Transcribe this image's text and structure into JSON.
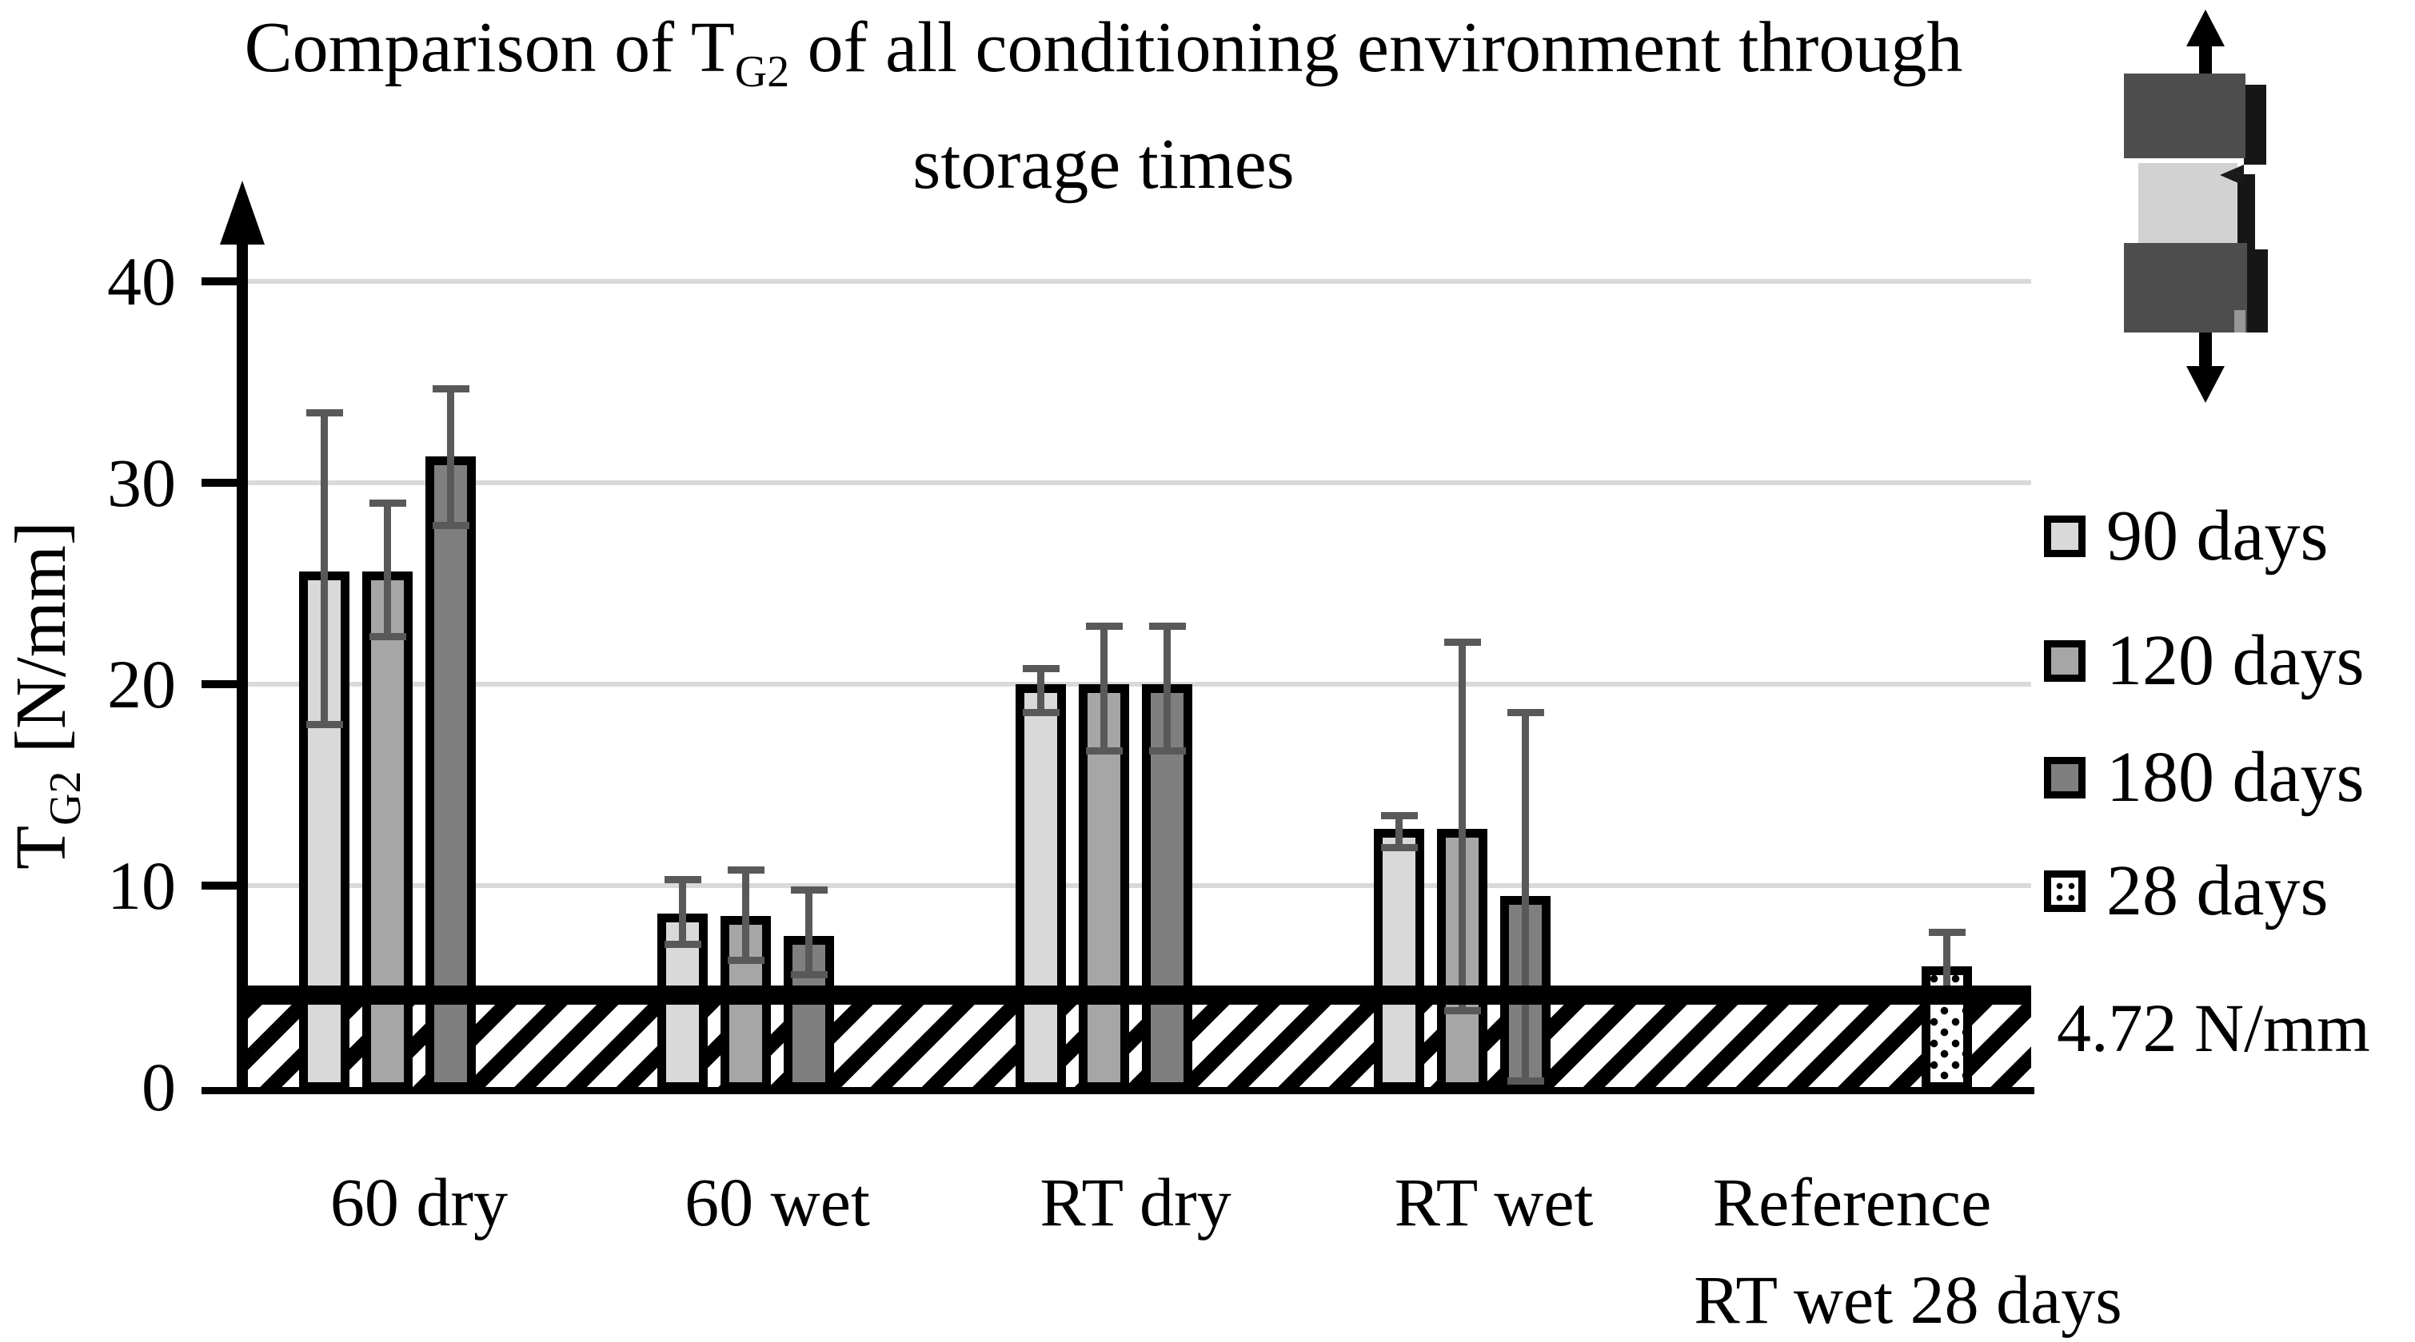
{
  "title": {
    "line1_prefix": "Comparison of T",
    "line1_sub": "G2",
    "line1_rest": " of all conditioning environment through",
    "line2": "storage times"
  },
  "y_axis": {
    "label_prefix": "T",
    "label_sub": "G2",
    "label_rest": " [N/mm]",
    "ticks": [
      0,
      10,
      20,
      30,
      40
    ]
  },
  "threshold": {
    "value": 4.72,
    "label": "4.72 N/mm"
  },
  "legend": {
    "items": [
      {
        "label": "90 days",
        "fill": "#d9d9d9",
        "pattern": "solid"
      },
      {
        "label": "120 days",
        "fill": "#a6a6a6",
        "pattern": "solid"
      },
      {
        "label": "180 days",
        "fill": "#7f7f7f",
        "pattern": "solid"
      },
      {
        "label": "28 days",
        "fill": "#ffffff",
        "pattern": "dotted"
      }
    ]
  },
  "colors": {
    "error_bar": "#595959",
    "gridline": "#d9d9d9",
    "axis": "#000000"
  },
  "chart_data": {
    "type": "bar",
    "title": "Comparison of TG2 of all conditioning environment through storage times",
    "ylabel": "TG2 [N/mm]",
    "xlabel": "",
    "ylim": [
      0,
      44
    ],
    "grid": true,
    "legend_position": "right",
    "threshold_line": 4.72,
    "categories": [
      {
        "line1": "60 dry",
        "line2": ""
      },
      {
        "line1": "60 wet",
        "line2": ""
      },
      {
        "line1": "RT dry",
        "line2": ""
      },
      {
        "line1": "RT wet",
        "line2": ""
      },
      {
        "line1": "Reference",
        "line2": "RT wet 28 days"
      }
    ],
    "series": [
      {
        "name": "90 days",
        "fill": "#d9d9d9",
        "pattern": "solid",
        "values": [
          25.6,
          8.6,
          20.0,
          12.8,
          null
        ],
        "error_low": [
          18.0,
          7.1,
          18.6,
          11.9,
          null
        ],
        "error_high": [
          33.5,
          10.3,
          20.8,
          13.5,
          null
        ]
      },
      {
        "name": "120 days",
        "fill": "#a6a6a6",
        "pattern": "solid",
        "values": [
          25.6,
          8.5,
          20.0,
          12.8,
          null
        ],
        "error_low": [
          22.4,
          6.3,
          16.7,
          3.8,
          null
        ],
        "error_high": [
          29.0,
          10.8,
          22.9,
          22.1,
          null
        ]
      },
      {
        "name": "180 days",
        "fill": "#7f7f7f",
        "pattern": "solid",
        "values": [
          31.3,
          7.5,
          20.0,
          9.5,
          null
        ],
        "error_low": [
          27.9,
          5.6,
          16.7,
          0.3,
          null
        ],
        "error_high": [
          34.7,
          9.8,
          22.9,
          18.6,
          null
        ]
      },
      {
        "name": "28 days",
        "fill": "#ffffff",
        "pattern": "dotted",
        "values": [
          null,
          null,
          null,
          null,
          6.0
        ],
        "error_low": [
          null,
          null,
          null,
          null,
          4.7
        ],
        "error_high": [
          null,
          null,
          null,
          null,
          7.7
        ]
      }
    ]
  }
}
